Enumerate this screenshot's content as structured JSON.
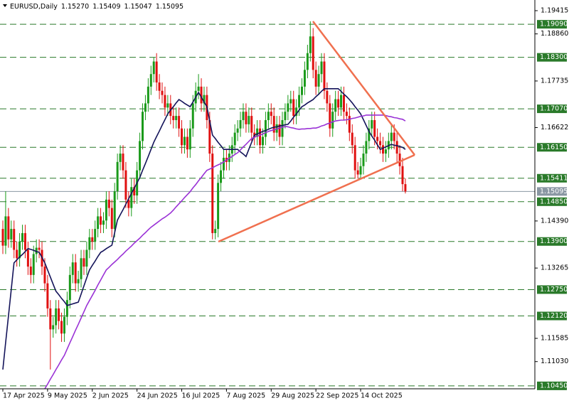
{
  "chart_data": {
    "type": "candlestick",
    "title": "EURUSD,Daily",
    "header_values": [
      "1.15270",
      "1.15409",
      "1.15047",
      "1.15095"
    ],
    "up_color": "#1a9a1a",
    "down_color": "#e01010",
    "level_color": "#2a7a2a",
    "current_color": "#8a97a3",
    "ylim": [
      1.1038,
      1.1967
    ],
    "yticks": [
      1.19415,
      {
        "value": 1.1886,
        "label": "1.18860"
      },
      1.17735,
      1.16622,
      {
        "value": 1.1439,
        "label": "1.14390"
      },
      1.13265,
      1.11585,
      {
        "value": 1.1103,
        "label": "1.11030"
      }
    ],
    "levels": [
      {
        "value": 1.1909,
        "label": "1.19090"
      },
      {
        "value": 1.183,
        "label": "1.18300"
      },
      {
        "value": 1.1707,
        "label": "1.17070"
      },
      {
        "value": 1.1615,
        "label": "1.16150"
      },
      {
        "value": 1.15411,
        "label": "1.15411"
      },
      {
        "value": 1.1485,
        "label": "1.14850"
      },
      {
        "value": 1.139,
        "label": "1.13900"
      },
      {
        "value": 1.1275,
        "label": "1.12750"
      },
      {
        "value": 1.1212,
        "label": "1.12120"
      },
      {
        "value": 1.1045,
        "label": "1.10450"
      }
    ],
    "current_price": {
      "value": 1.15095,
      "label": "1.15095"
    },
    "categories": [
      "17 Apr 2025",
      null,
      null,
      null,
      null,
      null,
      null,
      null,
      null,
      null,
      null,
      null,
      null,
      null,
      null,
      null,
      "9 May 2025",
      null,
      null,
      null,
      null,
      null,
      null,
      null,
      null,
      null,
      null,
      null,
      null,
      null,
      null,
      null,
      "2 Jun 2025",
      null,
      null,
      null,
      null,
      null,
      null,
      null,
      null,
      null,
      null,
      null,
      null,
      null,
      null,
      null,
      "24 Jun 2025",
      null,
      null,
      null,
      null,
      null,
      null,
      null,
      null,
      null,
      null,
      null,
      null,
      null,
      null,
      null,
      "16 Jul 2025",
      null,
      null,
      null,
      null,
      null,
      null,
      null,
      null,
      null,
      null,
      null,
      null,
      null,
      null,
      null,
      "7 Aug 2025",
      null,
      null,
      null,
      null,
      null,
      null,
      null,
      null,
      null,
      null,
      null,
      null,
      null,
      null,
      null,
      "29 Aug 2025",
      null,
      null,
      null,
      null,
      null,
      null,
      null,
      null,
      null,
      null,
      null,
      null,
      null,
      null,
      null,
      "22 Sep 2025",
      null,
      null,
      null,
      null,
      null,
      null,
      null,
      null,
      null,
      null,
      null,
      null,
      null,
      null,
      null,
      "14 Oct 2025",
      null,
      null,
      null,
      null,
      null,
      null,
      null,
      null,
      null,
      null,
      null,
      null,
      null,
      null,
      null,
      null
    ],
    "open": [
      1.142,
      1.138,
      1.145,
      1.1395,
      1.142,
      1.137,
      1.135,
      1.139,
      1.141,
      1.137,
      1.133,
      1.131,
      1.136,
      1.1375,
      1.137,
      1.133,
      1.129,
      1.123,
      1.118,
      1.119,
      1.123,
      1.12,
      1.117,
      1.121,
      1.125,
      1.131,
      1.134,
      1.129,
      1.13,
      1.135,
      1.133,
      1.137,
      1.14,
      1.139,
      1.142,
      1.145,
      1.143,
      1.144,
      1.149,
      1.147,
      1.142,
      1.151,
      1.158,
      1.16,
      1.156,
      1.149,
      1.147,
      1.152,
      1.15,
      1.156,
      1.163,
      1.17,
      1.172,
      1.176,
      1.179,
      1.182,
      1.177,
      1.175,
      1.174,
      1.171,
      1.172,
      1.169,
      1.168,
      1.169,
      1.166,
      1.162,
      1.164,
      1.161,
      1.166,
      1.172,
      1.175,
      1.176,
      1.172,
      1.174,
      1.168,
      1.16,
      1.141,
      1.142,
      1.153,
      1.156,
      1.159,
      1.158,
      1.16,
      1.162,
      1.165,
      1.166,
      1.168,
      1.17,
      1.167,
      1.169,
      1.165,
      1.164,
      1.166,
      1.162,
      1.164,
      1.168,
      1.17,
      1.169,
      1.165,
      1.167,
      1.164,
      1.168,
      1.17,
      1.172,
      1.173,
      1.169,
      1.171,
      1.174,
      1.176,
      1.18,
      1.184,
      1.188,
      1.18,
      1.176,
      1.179,
      1.182,
      1.175,
      1.172,
      1.166,
      1.17,
      1.173,
      1.171,
      1.174,
      1.17,
      1.169,
      1.165,
      1.162,
      1.156,
      1.155,
      1.157,
      1.16,
      1.163,
      1.166,
      1.168,
      1.164,
      1.163,
      1.162,
      1.16,
      1.161,
      1.163,
      1.165,
      1.163,
      1.16,
      1.157,
      1.1527
    ],
    "high": [
      1.144,
      1.151,
      1.147,
      1.144,
      1.144,
      1.139,
      1.141,
      1.143,
      1.143,
      1.139,
      1.135,
      1.138,
      1.1395,
      1.1395,
      1.139,
      1.135,
      1.131,
      1.125,
      1.121,
      1.125,
      1.125,
      1.122,
      1.123,
      1.127,
      1.133,
      1.136,
      1.136,
      1.132,
      1.137,
      1.137,
      1.139,
      1.142,
      1.142,
      1.144,
      1.147,
      1.147,
      1.146,
      1.151,
      1.151,
      1.149,
      1.153,
      1.16,
      1.162,
      1.162,
      1.158,
      1.151,
      1.154,
      1.154,
      1.158,
      1.165,
      1.172,
      1.174,
      1.178,
      1.181,
      1.183,
      1.184,
      1.179,
      1.177,
      1.176,
      1.174,
      1.174,
      1.171,
      1.171,
      1.171,
      1.168,
      1.166,
      1.166,
      1.168,
      1.174,
      1.177,
      1.179,
      1.178,
      1.176,
      1.176,
      1.17,
      1.162,
      1.144,
      1.155,
      1.158,
      1.161,
      1.161,
      1.162,
      1.164,
      1.167,
      1.168,
      1.17,
      1.172,
      1.172,
      1.171,
      1.171,
      1.167,
      1.168,
      1.168,
      1.166,
      1.17,
      1.172,
      1.172,
      1.171,
      1.169,
      1.169,
      1.17,
      1.172,
      1.174,
      1.175,
      1.175,
      1.173,
      1.176,
      1.178,
      1.182,
      1.186,
      1.1916,
      1.19,
      1.182,
      1.181,
      1.184,
      1.184,
      1.177,
      1.174,
      1.172,
      1.175,
      1.175,
      1.176,
      1.176,
      1.172,
      1.171,
      1.167,
      1.164,
      1.158,
      1.159,
      1.162,
      1.165,
      1.168,
      1.17,
      1.17,
      1.166,
      1.165,
      1.164,
      1.163,
      1.165,
      1.167,
      1.167,
      1.165,
      1.162,
      1.159,
      1.15409
    ],
    "low": [
      1.136,
      1.136,
      1.1375,
      1.1375,
      1.135,
      1.133,
      1.133,
      1.137,
      1.135,
      1.131,
      1.129,
      1.129,
      1.134,
      1.135,
      1.131,
      1.127,
      1.121,
      1.1084,
      1.116,
      1.117,
      1.118,
      1.115,
      1.115,
      1.119,
      1.123,
      1.129,
      1.127,
      1.127,
      1.128,
      1.131,
      1.131,
      1.135,
      1.137,
      1.137,
      1.14,
      1.141,
      1.141,
      1.142,
      1.145,
      1.14,
      1.14,
      1.149,
      1.156,
      1.154,
      1.147,
      1.145,
      1.145,
      1.148,
      1.148,
      1.154,
      1.161,
      1.168,
      1.17,
      1.174,
      1.177,
      1.175,
      1.173,
      1.172,
      1.169,
      1.169,
      1.167,
      1.166,
      1.166,
      1.164,
      1.16,
      1.16,
      1.159,
      1.159,
      1.164,
      1.17,
      1.173,
      1.17,
      1.17,
      1.166,
      1.158,
      1.1395,
      1.1395,
      1.14,
      1.151,
      1.154,
      1.156,
      1.156,
      1.158,
      1.16,
      1.163,
      1.164,
      1.166,
      1.165,
      1.165,
      1.163,
      1.162,
      1.162,
      1.16,
      1.16,
      1.162,
      1.166,
      1.167,
      1.163,
      1.163,
      1.162,
      1.162,
      1.166,
      1.168,
      1.17,
      1.167,
      1.167,
      1.169,
      1.172,
      1.174,
      1.178,
      1.182,
      1.178,
      1.174,
      1.174,
      1.177,
      1.173,
      1.17,
      1.164,
      1.164,
      1.168,
      1.169,
      1.169,
      1.168,
      1.167,
      1.163,
      1.16,
      1.154,
      1.154,
      1.154,
      1.155,
      1.158,
      1.161,
      1.164,
      1.162,
      1.161,
      1.16,
      1.158,
      1.158,
      1.159,
      1.161,
      1.161,
      1.158,
      1.155,
      1.151,
      1.15047
    ],
    "close": [
      1.138,
      1.145,
      1.1395,
      1.142,
      1.137,
      1.135,
      1.139,
      1.141,
      1.137,
      1.133,
      1.131,
      1.136,
      1.1375,
      1.137,
      1.133,
      1.129,
      1.123,
      1.118,
      1.119,
      1.123,
      1.12,
      1.117,
      1.121,
      1.125,
      1.131,
      1.134,
      1.129,
      1.13,
      1.135,
      1.133,
      1.137,
      1.14,
      1.139,
      1.142,
      1.145,
      1.143,
      1.144,
      1.149,
      1.147,
      1.142,
      1.151,
      1.158,
      1.16,
      1.156,
      1.149,
      1.147,
      1.152,
      1.15,
      1.156,
      1.163,
      1.17,
      1.172,
      1.176,
      1.179,
      1.182,
      1.177,
      1.175,
      1.174,
      1.171,
      1.172,
      1.169,
      1.168,
      1.169,
      1.166,
      1.162,
      1.164,
      1.161,
      1.166,
      1.172,
      1.175,
      1.176,
      1.172,
      1.174,
      1.168,
      1.16,
      1.141,
      1.142,
      1.153,
      1.156,
      1.159,
      1.158,
      1.16,
      1.162,
      1.165,
      1.166,
      1.168,
      1.17,
      1.167,
      1.169,
      1.165,
      1.164,
      1.166,
      1.162,
      1.164,
      1.168,
      1.17,
      1.169,
      1.165,
      1.167,
      1.164,
      1.168,
      1.17,
      1.172,
      1.173,
      1.169,
      1.171,
      1.174,
      1.176,
      1.18,
      1.184,
      1.188,
      1.18,
      1.176,
      1.179,
      1.182,
      1.175,
      1.172,
      1.166,
      1.17,
      1.173,
      1.171,
      1.174,
      1.17,
      1.169,
      1.165,
      1.162,
      1.156,
      1.155,
      1.157,
      1.16,
      1.163,
      1.166,
      1.168,
      1.164,
      1.163,
      1.162,
      1.16,
      1.161,
      1.163,
      1.165,
      1.163,
      1.16,
      1.157,
      1.1527,
      1.15095
    ],
    "moving_averages": [
      {
        "color": "#14145a",
        "values": [
          1.1084,
          1.1148,
          1.1212,
          1.1275,
          1.1339,
          1.1346,
          1.1353,
          1.1359,
          1.1366,
          1.1373,
          1.1371,
          1.1369,
          1.1366,
          1.1364,
          1.1352,
          1.1339,
          1.1322,
          1.1305,
          1.1288,
          1.1271,
          1.1263,
          1.1254,
          1.1246,
          1.1237,
          1.1239,
          1.1241,
          1.1243,
          1.1245,
          1.1264,
          1.1284,
          1.1303,
          1.1322,
          1.1333,
          1.1343,
          1.1354,
          1.1364,
          1.1368,
          1.1373,
          1.1377,
          1.1381,
          1.1411,
          1.1441,
          1.1454,
          1.1466,
          1.1479,
          1.1492,
          1.1505,
          1.1517,
          1.153,
          1.1543,
          1.156,
          1.1576,
          1.1593,
          1.161,
          1.1627,
          1.1641,
          1.1654,
          1.1668,
          1.1681,
          1.1695,
          1.1704,
          1.1712,
          1.1721,
          1.1729,
          1.1725,
          1.172,
          1.1716,
          1.1712,
          1.1723,
          1.1735,
          1.1746,
          1.1735,
          1.1723,
          1.1712,
          1.1678,
          1.1644,
          1.1636,
          1.1627,
          1.1619,
          1.161,
          1.161,
          1.161,
          1.161,
          1.161,
          1.161,
          1.1604,
          1.1599,
          1.1593,
          1.161,
          1.1627,
          1.1644,
          1.1647,
          1.165,
          1.1653,
          1.1655,
          1.1658,
          1.1661,
          1.1663,
          1.1664,
          1.1666,
          1.1667,
          1.1669,
          1.167,
          1.1678,
          1.1687,
          1.1695,
          1.1704,
          1.1712,
          1.1716,
          1.1721,
          1.1725,
          1.1729,
          1.1736,
          1.1742,
          1.1749,
          1.1755,
          1.1755,
          1.1755,
          1.1755,
          1.1755,
          1.1755,
          1.1749,
          1.1742,
          1.1736,
          1.1729,
          1.1721,
          1.1712,
          1.1704,
          1.1695,
          1.1681,
          1.1667,
          1.1653,
          1.1642,
          1.1632,
          1.1621,
          1.161,
          1.1613,
          1.1616,
          1.1619,
          1.1622,
          1.162,
          1.1619,
          1.1617,
          1.1615,
          1.161
        ]
      },
      {
        "color": "#9a32d6",
        "values": [
          null,
          null,
          null,
          null,
          null,
          null,
          null,
          null,
          null,
          null,
          null,
          null,
          null,
          null,
          null,
          1.1038,
          1.1049,
          1.1061,
          1.1072,
          1.1084,
          1.1095,
          1.1107,
          1.1118,
          1.1133,
          1.1148,
          1.1163,
          1.1178,
          1.1192,
          1.1207,
          1.1222,
          1.1237,
          1.1249,
          1.1261,
          1.1273,
          1.1286,
          1.1298,
          1.131,
          1.1322,
          1.1328,
          1.1335,
          1.1341,
          1.1347,
          1.1354,
          1.136,
          1.1367,
          1.1373,
          1.1379,
          1.1386,
          1.1392,
          1.1398,
          1.1405,
          1.1411,
          1.1418,
          1.1424,
          1.1429,
          1.1434,
          1.1439,
          1.1444,
          1.1448,
          1.1453,
          1.1458,
          1.1465,
          1.1473,
          1.148,
          1.1487,
          1.1495,
          1.1502,
          1.1509,
          1.1518,
          1.1526,
          1.1535,
          1.1543,
          1.1552,
          1.156,
          1.1563,
          1.1566,
          1.157,
          1.1573,
          1.1576,
          1.158,
          1.1585,
          1.1589,
          1.1593,
          1.1598,
          1.1602,
          1.1609,
          1.1616,
          1.1622,
          1.1629,
          1.1636,
          1.1639,
          1.1642,
          1.1644,
          1.1647,
          1.165,
          1.1653,
          1.1655,
          1.1657,
          1.1659,
          1.1661,
          1.1663,
          1.1665,
          1.1664,
          1.1662,
          1.1661,
          1.1659,
          1.1658,
          1.1659,
          1.1659,
          1.166,
          1.166,
          1.1661,
          1.1661,
          1.1663,
          1.1666,
          1.1668,
          1.1671,
          1.1673,
          1.1676,
          1.1678,
          1.1679,
          1.168,
          1.168,
          1.1681,
          1.1682,
          1.1684,
          1.1685,
          1.1687,
          1.1689,
          1.169,
          1.1692,
          1.1692,
          1.1692,
          1.1692,
          1.1692,
          1.1692,
          1.1692,
          1.1691,
          1.1689,
          1.1688,
          1.1686,
          1.1685,
          1.1683,
          1.1682,
          1.1678
        ]
      }
    ]
  }
}
